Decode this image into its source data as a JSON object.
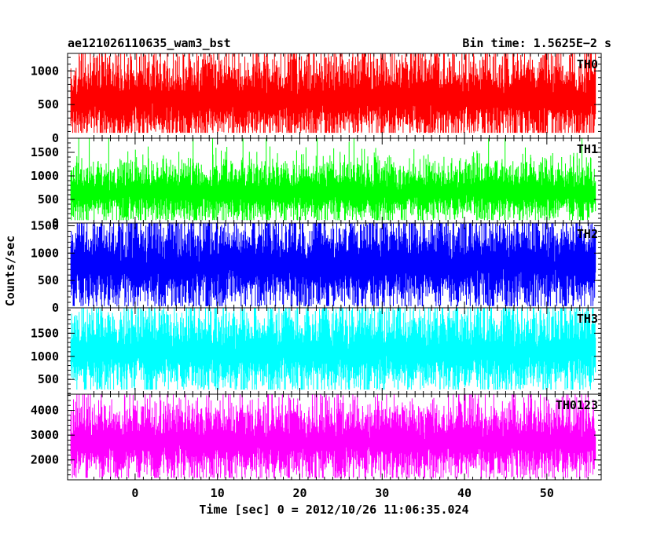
{
  "header": {
    "title": "ae121026110635_wam3_bst",
    "bin_time": "Bin time: 1.5625E−2 s"
  },
  "chart_data": {
    "type": "line",
    "xlabel": "Time [sec] 0 = 2012/10/26 11:06:35.024",
    "ylabel": "Counts/sec",
    "xlim": [
      -8.2,
      56.6
    ],
    "data_x_range": [
      -7.8,
      55.9
    ],
    "x_ticks": [
      0,
      10,
      20,
      30,
      40,
      50
    ],
    "panels": [
      {
        "name": "TH0",
        "color": "#ff0000",
        "ylim": [
          0,
          1260
        ],
        "y_ticks": [
          0,
          500,
          1000
        ],
        "mean": 560,
        "spread": 230,
        "min": 80,
        "max": 1260
      },
      {
        "name": "TH1",
        "color": "#00ff00",
        "ylim": [
          0,
          1800
        ],
        "y_ticks": [
          0,
          500,
          1000,
          1500
        ],
        "mean": 640,
        "spread": 230,
        "min": 60,
        "max": 1800
      },
      {
        "name": "TH2",
        "color": "#0000ff",
        "ylim": [
          0,
          1550
        ],
        "y_ticks": [
          0,
          500,
          1000,
          1500
        ],
        "mean": 760,
        "spread": 300,
        "min": 30,
        "max": 1550
      },
      {
        "name": "TH3",
        "color": "#00ffff",
        "ylim": [
          180,
          2050
        ],
        "y_ticks": [
          500,
          1000,
          1500
        ],
        "mean": 1080,
        "spread": 330,
        "min": 280,
        "max": 2050
      },
      {
        "name": "TH0123",
        "color": "#ff00ff",
        "ylim": [
          1200,
          4650
        ],
        "y_ticks": [
          2000,
          3000,
          4000
        ],
        "mean": 2700,
        "spread": 560,
        "min": 1280,
        "max": 4650
      }
    ]
  }
}
